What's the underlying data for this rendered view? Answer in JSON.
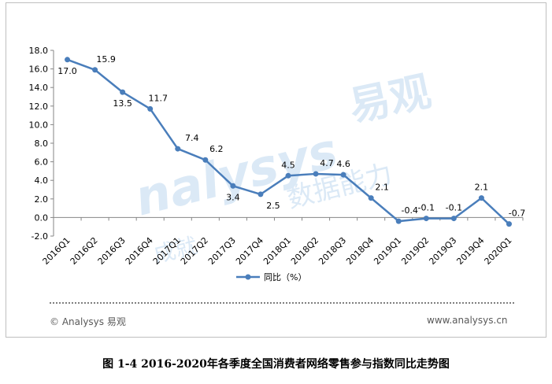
{
  "chart_data": {
    "type": "line",
    "categories": [
      "2016Q1",
      "2016Q2",
      "2016Q3",
      "2016Q4",
      "2017Q1",
      "2017Q2",
      "2017Q3",
      "2017Q4",
      "2018Q1",
      "2018Q2",
      "2018Q3",
      "2018Q4",
      "2019Q1",
      "2019Q2",
      "2019Q3",
      "2019Q4",
      "2020Q1"
    ],
    "series": [
      {
        "name": "同比（%）",
        "values": [
          17.0,
          15.9,
          13.5,
          11.7,
          7.4,
          6.2,
          3.4,
          2.5,
          4.5,
          4.7,
          4.6,
          2.1,
          -0.4,
          -0.1,
          -0.1,
          2.1,
          -0.7
        ],
        "labels": [
          "17.0",
          "15.9",
          "13.5",
          "11.7",
          "7.4",
          "6.2",
          "3.4",
          "2.5",
          "4.5",
          "4.7",
          "4.6",
          "2.1",
          "-0.4",
          "-0.1",
          "-0.1",
          "2.1",
          "-0.7"
        ]
      }
    ],
    "ylim": [
      -2.0,
      18.0
    ],
    "yticks": [
      "-2.0",
      "0.0",
      "2.0",
      "4.0",
      "6.0",
      "8.0",
      "10.0",
      "12.0",
      "14.0",
      "16.0",
      "18.0"
    ],
    "grid": false,
    "legend": "bottom",
    "color": "#4a7ebb"
  },
  "footer": {
    "copyright": "© Analysys 易观",
    "website": "www.analysys.cn"
  },
  "caption": "图 1-4 2016-2020年各季度全国消费者网络零售参与指数同比走势图",
  "watermark": {
    "brand": "易观",
    "latin": "nalysys",
    "slogan": "数据能力",
    "faded": "成就"
  }
}
